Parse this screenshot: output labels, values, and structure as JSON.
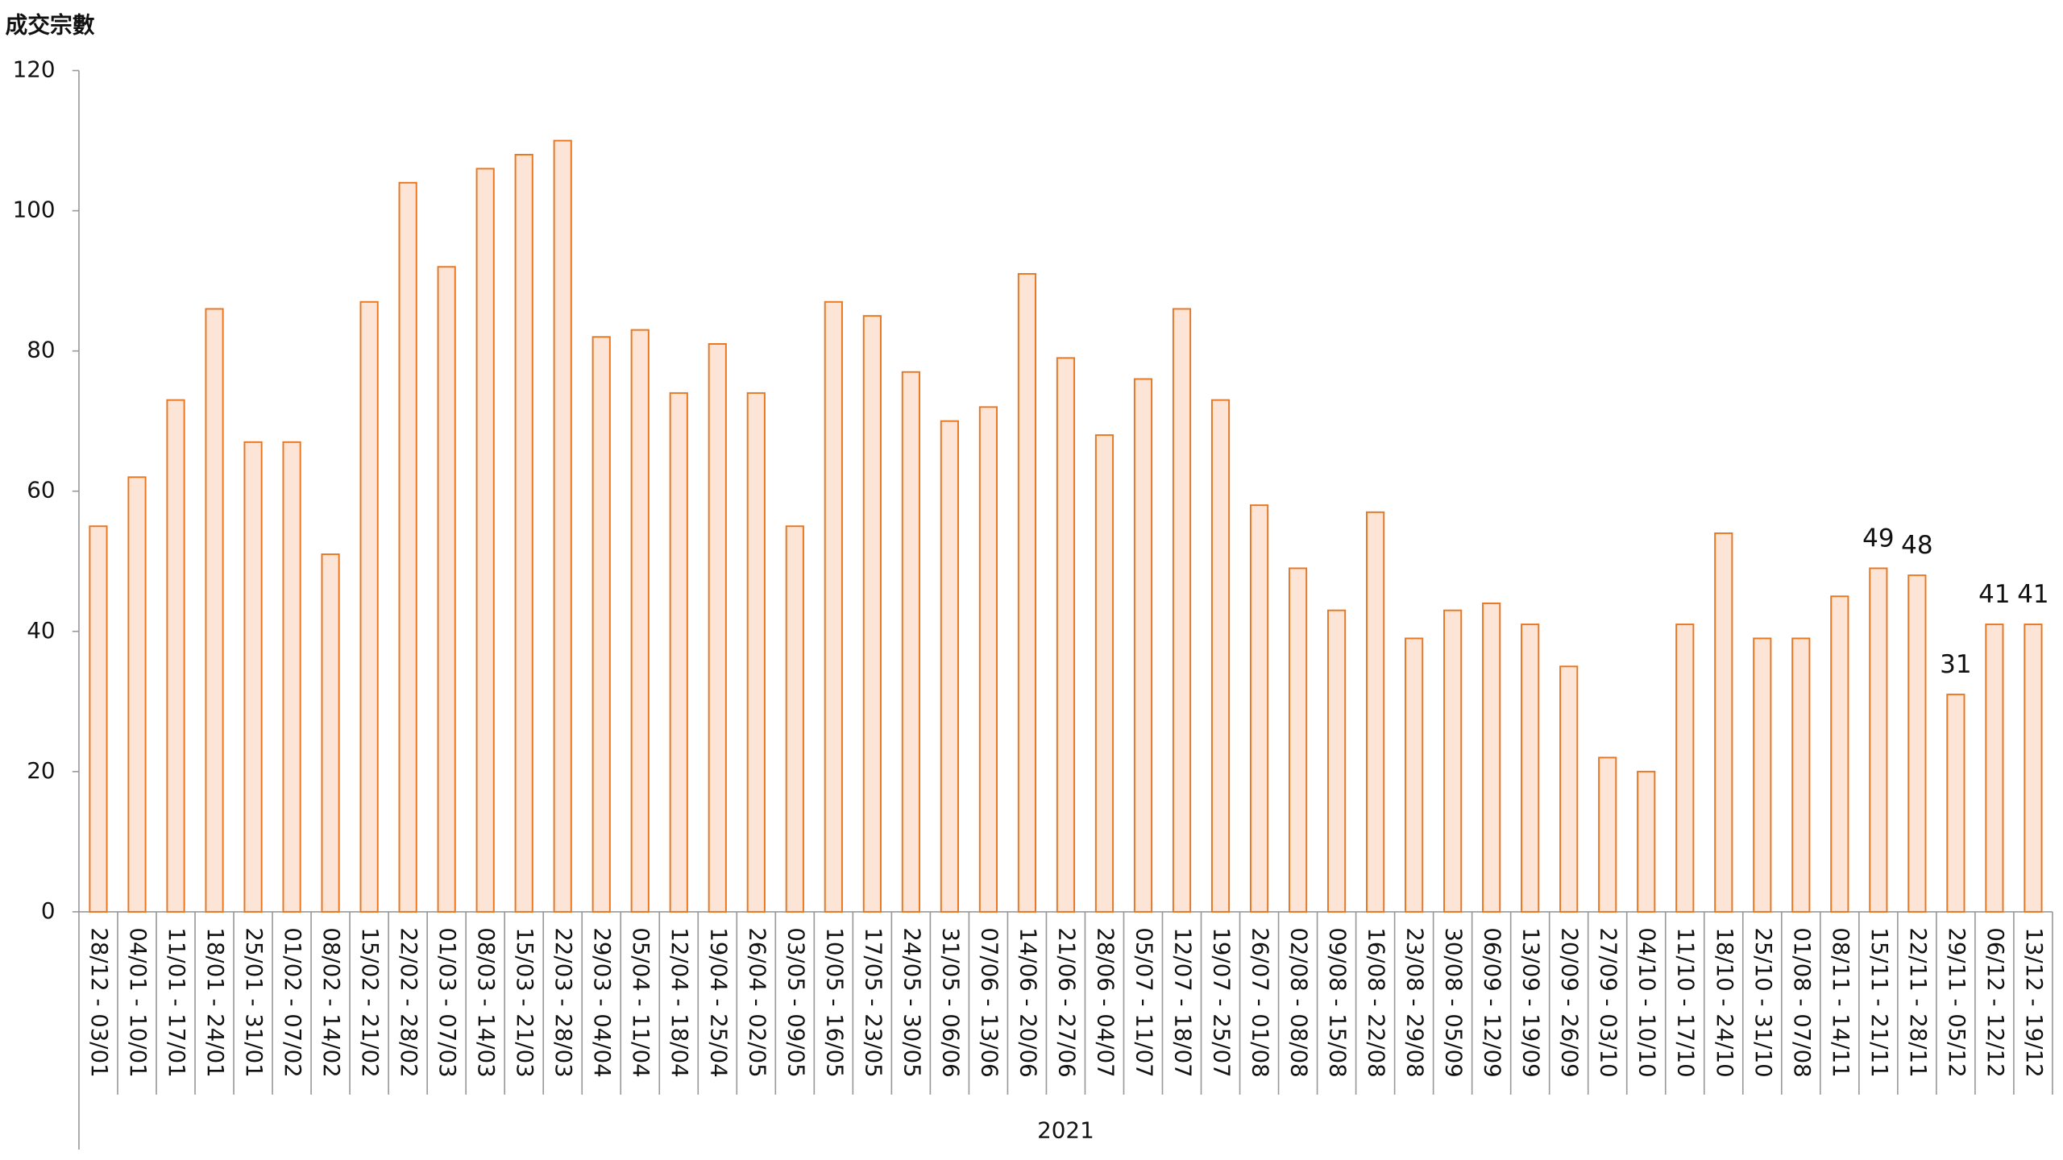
{
  "chart_data": {
    "type": "bar",
    "y_axis_label": "成交宗數",
    "x_group_label": "2021",
    "categories": [
      "28/12 - 03/01",
      "04/01 - 10/01",
      "11/01 - 17/01",
      "18/01 - 24/01",
      "25/01 - 31/01",
      "01/02 - 07/02",
      "08/02 - 14/02",
      "15/02 - 21/02",
      "22/02 - 28/02",
      "01/03 - 07/03",
      "08/03 - 14/03",
      "15/03 - 21/03",
      "22/03 - 28/03",
      "29/03 - 04/04",
      "05/04 - 11/04",
      "12/04 - 18/04",
      "19/04 - 25/04",
      "26/04 - 02/05",
      "03/05 - 09/05",
      "10/05 - 16/05",
      "17/05 - 23/05",
      "24/05 - 30/05",
      "31/05 - 06/06",
      "07/06 - 13/06",
      "14/06 - 20/06",
      "21/06 - 27/06",
      "28/06 - 04/07",
      "05/07 - 11/07",
      "12/07 - 18/07",
      "19/07 - 25/07",
      "26/07 - 01/08",
      "02/08 - 08/08",
      "09/08 - 15/08",
      "16/08 - 22/08",
      "23/08 - 29/08",
      "30/08 - 05/09",
      "06/09 - 12/09",
      "13/09 - 19/09",
      "20/09 - 26/09",
      "27/09 - 03/10",
      "04/10 - 10/10",
      "11/10 - 17/10",
      "18/10 - 24/10",
      "25/10 - 31/10",
      "01/08 - 07/08",
      "08/11 - 14/11",
      "15/11 - 21/11",
      "22/11 - 28/11",
      "29/11 - 05/12",
      "06/12 - 12/12",
      "13/12 - 19/12"
    ],
    "values": [
      55,
      62,
      73,
      86,
      67,
      67,
      51,
      87,
      104,
      92,
      106,
      108,
      110,
      82,
      83,
      74,
      81,
      74,
      55,
      87,
      85,
      77,
      70,
      72,
      91,
      79,
      68,
      76,
      86,
      73,
      58,
      49,
      43,
      57,
      39,
      43,
      44,
      41,
      35,
      22,
      20,
      41,
      54,
      39,
      39,
      45,
      49,
      48,
      31,
      41,
      41
    ],
    "value_labels": [
      null,
      null,
      null,
      null,
      null,
      null,
      null,
      null,
      null,
      null,
      null,
      null,
      null,
      null,
      null,
      null,
      null,
      null,
      null,
      null,
      null,
      null,
      null,
      null,
      null,
      null,
      null,
      null,
      null,
      null,
      null,
      null,
      null,
      null,
      null,
      null,
      null,
      null,
      null,
      null,
      null,
      null,
      null,
      null,
      null,
      null,
      "49",
      "48",
      "31",
      "41",
      "41"
    ],
    "color": "#fce4d6",
    "edge_color": "#e87722",
    "ylim": [
      0,
      120
    ],
    "yticks": [
      0,
      20,
      40,
      60,
      80,
      100,
      120
    ],
    "grid": false
  }
}
